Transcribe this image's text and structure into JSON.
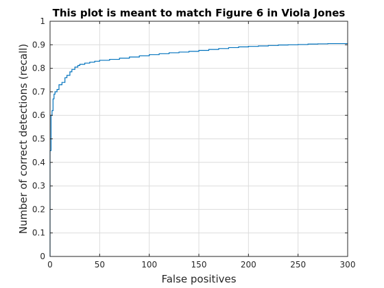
{
  "chart_data": {
    "type": "line",
    "title": "This plot is meant to match Figure 6 in Viola Jones",
    "xlabel": "False positives",
    "ylabel": "Number of correct detections (recall)",
    "xlim": [
      0,
      300
    ],
    "ylim": [
      0,
      1
    ],
    "xticks": [
      0,
      50,
      100,
      150,
      200,
      250,
      300
    ],
    "yticks": [
      0,
      0.1,
      0.2,
      0.3,
      0.4,
      0.5,
      0.6,
      0.7,
      0.8,
      0.9,
      1
    ],
    "grid": true,
    "series": [
      {
        "color": "#0072bd",
        "step": true,
        "x": [
          0,
          0,
          1,
          1,
          2,
          3,
          4,
          5,
          7,
          9,
          12,
          15,
          17,
          20,
          22,
          25,
          28,
          30,
          35,
          40,
          45,
          50,
          60,
          70,
          80,
          90,
          100,
          110,
          120,
          130,
          140,
          150,
          160,
          170,
          180,
          190,
          200,
          210,
          220,
          230,
          240,
          250,
          260,
          270,
          280,
          290,
          300
        ],
        "y": [
          0,
          0.45,
          0.5,
          0.6,
          0.62,
          0.67,
          0.69,
          0.7,
          0.71,
          0.73,
          0.74,
          0.76,
          0.77,
          0.785,
          0.795,
          0.805,
          0.812,
          0.817,
          0.822,
          0.826,
          0.83,
          0.834,
          0.838,
          0.843,
          0.848,
          0.853,
          0.858,
          0.862,
          0.866,
          0.869,
          0.872,
          0.876,
          0.88,
          0.884,
          0.888,
          0.891,
          0.893,
          0.895,
          0.897,
          0.899,
          0.9,
          0.901,
          0.903,
          0.904,
          0.905,
          0.905,
          0.906
        ]
      }
    ]
  }
}
